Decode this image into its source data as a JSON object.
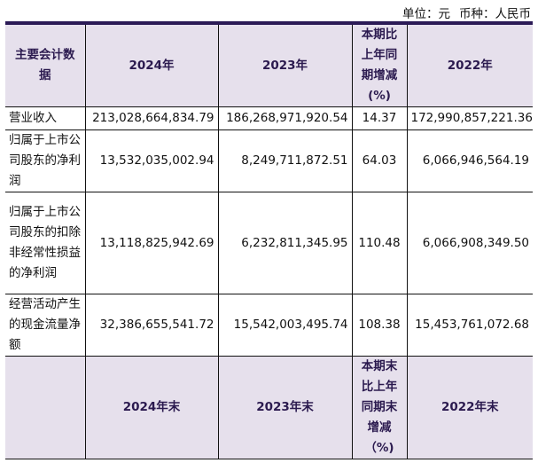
{
  "unit": {
    "unit_label": "单位：元",
    "currency_label": "币种：人民币"
  },
  "header": {
    "col0": "主要会计数据",
    "col1": "2024年",
    "col2": "2023年",
    "col3": "本期比上年同期增减(%)",
    "col4": "2022年"
  },
  "rows": [
    {
      "label": "营业收入",
      "y2024": "213,028,664,834.79",
      "y2023": "186,268,971,920.54",
      "change": "14.37",
      "y2022": "172,990,857,221.36"
    },
    {
      "label": "归属于上市公司股东的净利润",
      "y2024": "13,532,035,002.94",
      "y2023": "8,249,711,872.51",
      "change": "64.03",
      "y2022": "6,066,946,564.19"
    },
    {
      "label": "归属于上市公司股东的扣除非经常性损益的净利润",
      "y2024": "13,118,825,942.69",
      "y2023": "6,232,811,345.95",
      "change": "110.48",
      "y2022": "6,066,908,349.50"
    },
    {
      "label": "经营活动产生的现金流量净额",
      "y2024": "32,386,655,541.72",
      "y2023": "15,542,003,495.74",
      "change": "108.38",
      "y2022": "15,453,761,072.68"
    }
  ],
  "header2": {
    "col0": "",
    "col1": "2024年末",
    "col2": "2023年末",
    "col3": "本期末比上年同期末增减（%)",
    "col4": "2022年末"
  },
  "colors": {
    "header_bg": "#e6e0ec",
    "header_text": "#2b1a4f",
    "top_rule": "#2b1a56"
  }
}
